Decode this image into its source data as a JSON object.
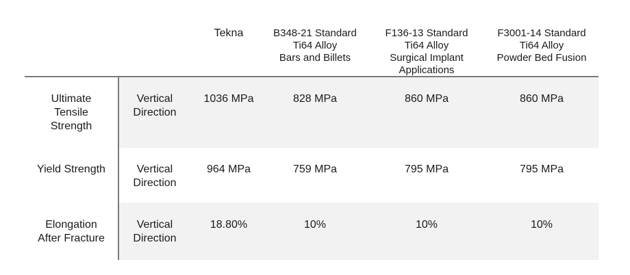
{
  "table": {
    "columns": [
      "Tekna",
      "B348-21 Standard\nTi64 Alloy\nBars and Billets",
      "F136-13 Standard\nTi64 Alloy\nSurgical Implant\nApplications",
      "F3001-14 Standard\nTi64 Alloy\nPowder Bed Fusion"
    ],
    "rows": [
      {
        "property": "Ultimate\nTensile\nStrength",
        "direction": "Vertical\nDirection",
        "values": [
          "1036 MPa",
          "828 MPa",
          "860 MPa",
          "860 MPa"
        ]
      },
      {
        "property": "Yield Strength",
        "direction": "Vertical\nDirection",
        "values": [
          "964 MPa",
          "759 MPa",
          "795 MPa",
          "795 MPa"
        ]
      },
      {
        "property": "Elongation\nAfter Fracture",
        "direction": "Vertical\nDirection",
        "values": [
          "18.80%",
          "10%",
          "10%",
          "10%"
        ]
      }
    ]
  },
  "colors": {
    "shade": "#f2f2f2",
    "rule": "#7a7a7a",
    "text": "#1a1a1a"
  }
}
